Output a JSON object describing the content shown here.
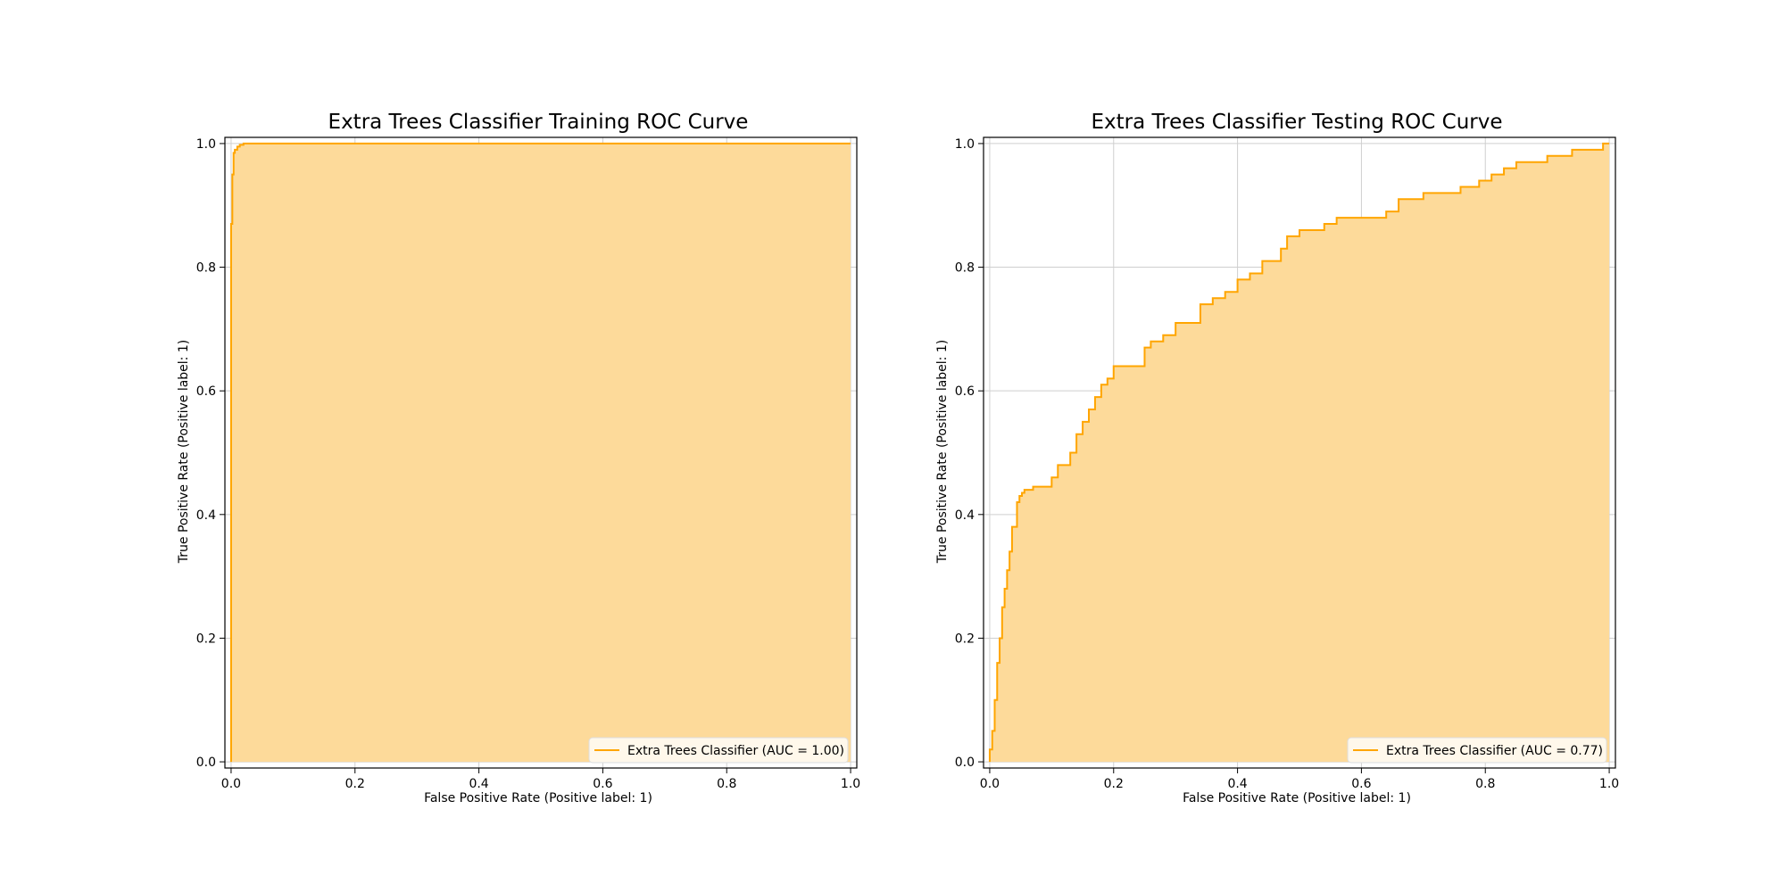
{
  "colors": {
    "curve": "#FFA500",
    "fill": "#FDDA9A",
    "grid": "#cfcfcf",
    "axis": "#000000"
  },
  "chart_data": [
    {
      "type": "area",
      "title": "Extra Trees Classifier Training ROC Curve",
      "xlabel": "False Positive Rate (Positive label: 1)",
      "ylabel": "True Positive Rate (Positive label: 1)",
      "xlim": [
        0,
        1
      ],
      "ylim": [
        0,
        1
      ],
      "xticks": [
        "0.0",
        "0.2",
        "0.4",
        "0.6",
        "0.8",
        "1.0"
      ],
      "yticks": [
        "0.0",
        "0.2",
        "0.4",
        "0.6",
        "0.8",
        "1.0"
      ],
      "grid": true,
      "legend_position": "lower-right",
      "series": [
        {
          "name": "Extra Trees Classifier (AUC = 1.00)",
          "x": [
            0,
            0,
            0.002,
            0.002,
            0.004,
            0.004,
            0.006,
            0.006,
            0.01,
            0.01,
            0.014,
            0.014,
            0.02,
            0.02,
            1.0
          ],
          "y": [
            0,
            0.87,
            0.87,
            0.95,
            0.95,
            0.985,
            0.985,
            0.99,
            0.99,
            0.995,
            0.995,
            0.998,
            0.998,
            1.0,
            1.0
          ]
        }
      ]
    },
    {
      "type": "area",
      "title": "Extra Trees Classifier Testing ROC Curve",
      "xlabel": "False Positive Rate (Positive label: 1)",
      "ylabel": "True Positive Rate (Positive label: 1)",
      "xlim": [
        0,
        1
      ],
      "ylim": [
        0,
        1
      ],
      "xticks": [
        "0.0",
        "0.2",
        "0.4",
        "0.6",
        "0.8",
        "1.0"
      ],
      "yticks": [
        "0.0",
        "0.2",
        "0.4",
        "0.6",
        "0.8",
        "1.0"
      ],
      "grid": true,
      "legend_position": "lower-right",
      "series": [
        {
          "name": "Extra Trees Classifier (AUC = 0.77)",
          "x": [
            0,
            0,
            0.004,
            0.004,
            0.008,
            0.008,
            0.012,
            0.012,
            0.016,
            0.016,
            0.02,
            0.02,
            0.024,
            0.024,
            0.028,
            0.028,
            0.032,
            0.032,
            0.036,
            0.036,
            0.044,
            0.044,
            0.048,
            0.048,
            0.052,
            0.052,
            0.056,
            0.056,
            0.07,
            0.07,
            0.1,
            0.1,
            0.11,
            0.11,
            0.13,
            0.13,
            0.14,
            0.14,
            0.15,
            0.15,
            0.16,
            0.16,
            0.17,
            0.17,
            0.18,
            0.18,
            0.19,
            0.19,
            0.2,
            0.2,
            0.25,
            0.25,
            0.26,
            0.26,
            0.28,
            0.28,
            0.3,
            0.3,
            0.34,
            0.34,
            0.36,
            0.36,
            0.38,
            0.38,
            0.4,
            0.4,
            0.42,
            0.42,
            0.44,
            0.44,
            0.47,
            0.47,
            0.48,
            0.48,
            0.5,
            0.5,
            0.54,
            0.54,
            0.56,
            0.56,
            0.64,
            0.64,
            0.66,
            0.66,
            0.7,
            0.7,
            0.76,
            0.76,
            0.79,
            0.79,
            0.81,
            0.81,
            0.83,
            0.83,
            0.85,
            0.85,
            0.9,
            0.9,
            0.94,
            0.94,
            0.99,
            0.99,
            1.0
          ],
          "y": [
            0,
            0.02,
            0.02,
            0.05,
            0.05,
            0.1,
            0.1,
            0.16,
            0.16,
            0.2,
            0.2,
            0.25,
            0.25,
            0.28,
            0.28,
            0.31,
            0.31,
            0.34,
            0.34,
            0.38,
            0.38,
            0.42,
            0.42,
            0.43,
            0.43,
            0.435,
            0.435,
            0.44,
            0.44,
            0.445,
            0.445,
            0.46,
            0.46,
            0.48,
            0.48,
            0.5,
            0.5,
            0.53,
            0.53,
            0.55,
            0.55,
            0.57,
            0.57,
            0.59,
            0.59,
            0.61,
            0.61,
            0.62,
            0.62,
            0.64,
            0.64,
            0.67,
            0.67,
            0.68,
            0.68,
            0.69,
            0.69,
            0.71,
            0.71,
            0.74,
            0.74,
            0.75,
            0.75,
            0.76,
            0.76,
            0.78,
            0.78,
            0.79,
            0.79,
            0.81,
            0.81,
            0.83,
            0.83,
            0.85,
            0.85,
            0.86,
            0.86,
            0.87,
            0.87,
            0.88,
            0.88,
            0.89,
            0.89,
            0.91,
            0.91,
            0.92,
            0.92,
            0.93,
            0.93,
            0.94,
            0.94,
            0.95,
            0.95,
            0.96,
            0.96,
            0.97,
            0.97,
            0.98,
            0.98,
            0.99,
            0.99,
            1.0,
            1.0
          ]
        }
      ]
    }
  ]
}
